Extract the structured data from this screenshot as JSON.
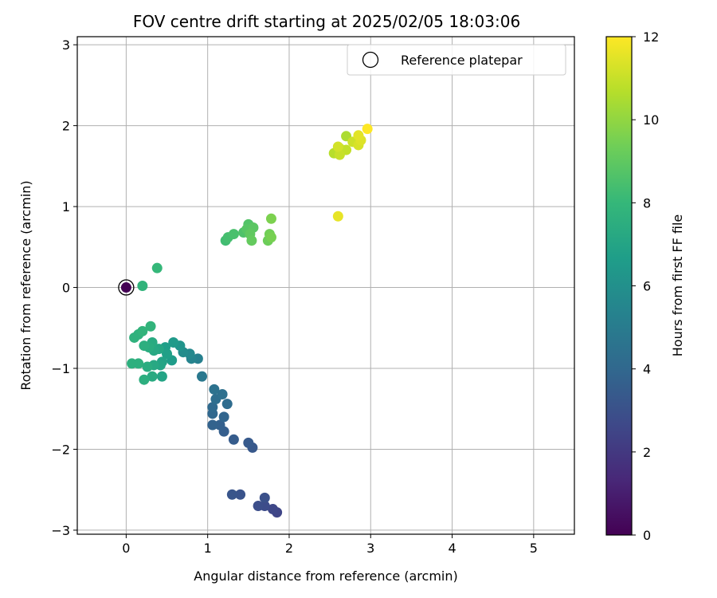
{
  "chart_data": {
    "type": "scatter",
    "title": "FOV centre drift starting at 2025/02/05 18:03:06",
    "xlabel": "Angular distance from reference (arcmin)",
    "ylabel": "Rotation from reference (arcmin)",
    "xlim": [
      -0.6,
      5.5
    ],
    "ylim": [
      -3.05,
      3.1
    ],
    "xticks": [
      0,
      1,
      2,
      3,
      4,
      5
    ],
    "yticks": [
      -3,
      -2,
      -1,
      0,
      1,
      2,
      3
    ],
    "grid": true,
    "legend": {
      "placement": "top-right",
      "label": "Reference platepar"
    },
    "colorbar": {
      "label": "Hours from first FF file",
      "range": [
        0,
        12
      ],
      "ticks": [
        0,
        2,
        4,
        6,
        8,
        10,
        12
      ],
      "colormap": "viridis"
    },
    "reference_point": {
      "x": 0,
      "y": 0
    },
    "points": [
      {
        "x": 0,
        "y": 0,
        "c": 0
      },
      {
        "x": 1.85,
        "y": -2.78,
        "c": 2.5
      },
      {
        "x": 1.8,
        "y": -2.74,
        "c": 2.6
      },
      {
        "x": 1.7,
        "y": -2.7,
        "c": 2.8
      },
      {
        "x": 1.62,
        "y": -2.7,
        "c": 2.9
      },
      {
        "x": 1.7,
        "y": -2.6,
        "c": 3.0
      },
      {
        "x": 1.4,
        "y": -2.56,
        "c": 3.1
      },
      {
        "x": 1.3,
        "y": -2.56,
        "c": 3.2
      },
      {
        "x": 1.55,
        "y": -1.98,
        "c": 3.3
      },
      {
        "x": 1.5,
        "y": -1.92,
        "c": 3.4
      },
      {
        "x": 1.32,
        "y": -1.88,
        "c": 3.5
      },
      {
        "x": 1.2,
        "y": -1.78,
        "c": 3.6
      },
      {
        "x": 1.15,
        "y": -1.7,
        "c": 3.7
      },
      {
        "x": 1.06,
        "y": -1.7,
        "c": 3.8
      },
      {
        "x": 1.2,
        "y": -1.6,
        "c": 3.9
      },
      {
        "x": 1.06,
        "y": -1.56,
        "c": 4.0
      },
      {
        "x": 1.06,
        "y": -1.48,
        "c": 4.1
      },
      {
        "x": 1.24,
        "y": -1.44,
        "c": 4.2
      },
      {
        "x": 1.1,
        "y": -1.38,
        "c": 4.3
      },
      {
        "x": 1.18,
        "y": -1.32,
        "c": 4.4
      },
      {
        "x": 1.08,
        "y": -1.26,
        "c": 4.5
      },
      {
        "x": 0.93,
        "y": -1.1,
        "c": 4.8
      },
      {
        "x": 0.88,
        "y": -0.88,
        "c": 5.2
      },
      {
        "x": 0.8,
        "y": -0.88,
        "c": 5.4
      },
      {
        "x": 0.78,
        "y": -0.82,
        "c": 5.6
      },
      {
        "x": 0.7,
        "y": -0.8,
        "c": 5.8
      },
      {
        "x": 0.66,
        "y": -0.72,
        "c": 6.2
      },
      {
        "x": 0.58,
        "y": -0.68,
        "c": 6.5
      },
      {
        "x": 0.56,
        "y": -0.9,
        "c": 6.6
      },
      {
        "x": 0.48,
        "y": -0.74,
        "c": 6.7
      },
      {
        "x": 0.5,
        "y": -0.82,
        "c": 6.8
      },
      {
        "x": 0.44,
        "y": -0.92,
        "c": 6.9
      },
      {
        "x": 0.42,
        "y": -0.96,
        "c": 7.0
      },
      {
        "x": 0.44,
        "y": -1.1,
        "c": 7.0
      },
      {
        "x": 0.4,
        "y": -0.76,
        "c": 7.1
      },
      {
        "x": 0.34,
        "y": -0.78,
        "c": 7.2
      },
      {
        "x": 0.32,
        "y": -0.68,
        "c": 7.3
      },
      {
        "x": 0.34,
        "y": -0.96,
        "c": 7.2
      },
      {
        "x": 0.32,
        "y": -1.1,
        "c": 7.3
      },
      {
        "x": 0.28,
        "y": -0.74,
        "c": 7.4
      },
      {
        "x": 0.26,
        "y": -0.98,
        "c": 7.4
      },
      {
        "x": 0.22,
        "y": -0.72,
        "c": 7.5
      },
      {
        "x": 0.22,
        "y": -1.14,
        "c": 7.5
      },
      {
        "x": 0.15,
        "y": -0.94,
        "c": 7.6
      },
      {
        "x": 0.07,
        "y": -0.94,
        "c": 7.6
      },
      {
        "x": 0.1,
        "y": -0.62,
        "c": 7.7
      },
      {
        "x": 0.15,
        "y": -0.58,
        "c": 7.7
      },
      {
        "x": 0.2,
        "y": -0.54,
        "c": 7.8
      },
      {
        "x": 0.3,
        "y": -0.48,
        "c": 7.8
      },
      {
        "x": 0.2,
        "y": 0.02,
        "c": 7.8
      },
      {
        "x": 0.38,
        "y": 0.24,
        "c": 8.0
      },
      {
        "x": 1.22,
        "y": 0.58,
        "c": 8.3
      },
      {
        "x": 1.25,
        "y": 0.62,
        "c": 8.4
      },
      {
        "x": 1.32,
        "y": 0.66,
        "c": 8.5
      },
      {
        "x": 1.44,
        "y": 0.68,
        "c": 8.6
      },
      {
        "x": 1.5,
        "y": 0.78,
        "c": 8.7
      },
      {
        "x": 1.48,
        "y": 0.72,
        "c": 8.8
      },
      {
        "x": 1.56,
        "y": 0.74,
        "c": 8.9
      },
      {
        "x": 1.52,
        "y": 0.66,
        "c": 9.0
      },
      {
        "x": 1.54,
        "y": 0.58,
        "c": 9.1
      },
      {
        "x": 1.74,
        "y": 0.58,
        "c": 9.3
      },
      {
        "x": 1.76,
        "y": 0.66,
        "c": 9.4
      },
      {
        "x": 1.78,
        "y": 0.62,
        "c": 9.5
      },
      {
        "x": 1.78,
        "y": 0.85,
        "c": 9.6
      },
      {
        "x": 2.7,
        "y": 1.87,
        "c": 10.5
      },
      {
        "x": 2.55,
        "y": 1.66,
        "c": 10.7
      },
      {
        "x": 2.62,
        "y": 1.72,
        "c": 10.8
      },
      {
        "x": 2.7,
        "y": 1.7,
        "c": 10.9
      },
      {
        "x": 2.62,
        "y": 1.64,
        "c": 11.0
      },
      {
        "x": 2.78,
        "y": 1.8,
        "c": 11.1
      },
      {
        "x": 2.6,
        "y": 1.74,
        "c": 11.2
      },
      {
        "x": 2.85,
        "y": 1.76,
        "c": 11.3
      },
      {
        "x": 2.88,
        "y": 1.82,
        "c": 11.4
      },
      {
        "x": 2.85,
        "y": 1.88,
        "c": 11.5
      },
      {
        "x": 2.6,
        "y": 0.88,
        "c": 11.6
      },
      {
        "x": 2.96,
        "y": 1.96,
        "c": 12.0
      }
    ]
  }
}
